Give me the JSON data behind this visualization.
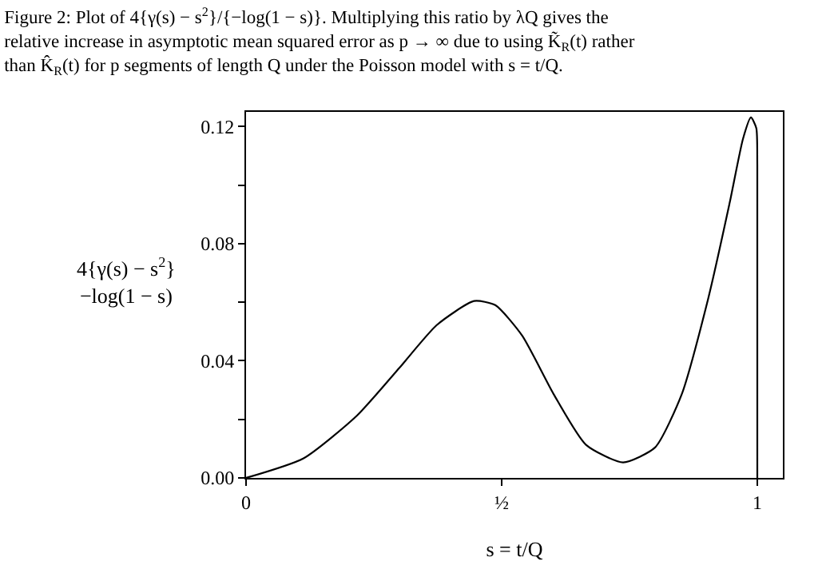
{
  "chart_data": {
    "type": "line",
    "title": "Figure 2: Plot of 4{γ(s) − s$^{2}$}/{−log(1 − s)}. Multiplying this ratio by λQ gives the relative increase in asymptotic mean squared error as p → ∞ due to using K̃$_{R}$(t) rather than K̂$_{R}$(t) for p segments of length Q under the Poisson model with s = t/Q.",
    "xlabel": "s = t/Q",
    "ylabel": "4{γ(s) − s$^{2}$}\n−log(1 − s)",
    "x": [
      0,
      0.1125,
      0.217,
      0.3,
      0.373,
      0.446,
      0.4875,
      0.54,
      0.602,
      0.665,
      0.7375,
      0.8,
      0.852,
      0.904,
      0.946,
      0.972,
      0.9875,
      0.998,
      1.0,
      1.0
    ],
    "series": [
      {
        "color": "#000000",
        "values": [
          0,
          0.0067,
          0.0213,
          0.0376,
          0.0522,
          0.0604,
          0.059,
          0.0486,
          0.0285,
          0.0113,
          0.0053,
          0.0104,
          0.0285,
          0.0613,
          0.094,
          0.1158,
          0.1231,
          0.1195,
          0.107,
          0
        ]
      }
    ],
    "xlim": [
      0,
      1.05
    ],
    "xticks": [
      0,
      {
        "value": 0.5,
        "label": "½"
      },
      1
    ],
    "ylim": [
      0,
      0.125
    ],
    "yticks": [
      {
        "value": 0,
        "label": "0.00"
      },
      {
        "value": 0.02,
        "label": null
      },
      {
        "value": 0.04,
        "label": "0.04"
      },
      {
        "value": 0.06,
        "label": null
      },
      {
        "value": 0.08,
        "label": "0.08"
      },
      {
        "value": 0.1,
        "label": null
      },
      {
        "value": 0.12,
        "label": "0.12"
      }
    ],
    "marker": "none",
    "line_style": "solid"
  }
}
